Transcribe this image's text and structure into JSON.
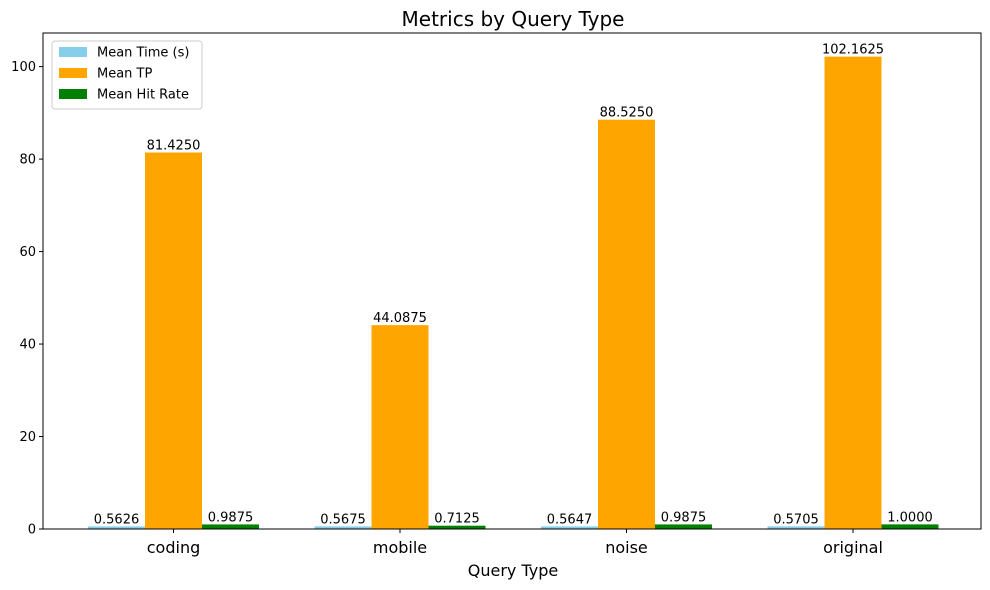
{
  "chart_data": {
    "type": "bar",
    "title": "Metrics by Query Type",
    "xlabel": "Query Type",
    "ylabel": "",
    "categories": [
      "coding",
      "mobile",
      "noise",
      "original"
    ],
    "series": [
      {
        "name": "Mean Time (s)",
        "color": "#87ceeb",
        "values": [
          0.5626,
          0.5675,
          0.5647,
          0.5705
        ],
        "labels": [
          "0.5626",
          "0.5675",
          "0.5647",
          "0.5705"
        ]
      },
      {
        "name": "Mean TP",
        "color": "#ffa500",
        "values": [
          81.425,
          44.0875,
          88.525,
          102.1625
        ],
        "labels": [
          "81.4250",
          "44.0875",
          "88.5250",
          "102.1625"
        ]
      },
      {
        "name": "Mean Hit Rate",
        "color": "#008000",
        "values": [
          0.9875,
          0.7125,
          0.9875,
          1.0
        ],
        "labels": [
          "0.9875",
          "0.7125",
          "0.9875",
          "1.0000"
        ]
      }
    ],
    "ylim": [
      0,
      107.27
    ],
    "yticks": [
      0,
      20,
      40,
      60,
      80,
      100
    ],
    "grid": false,
    "legend": "upper-left"
  }
}
